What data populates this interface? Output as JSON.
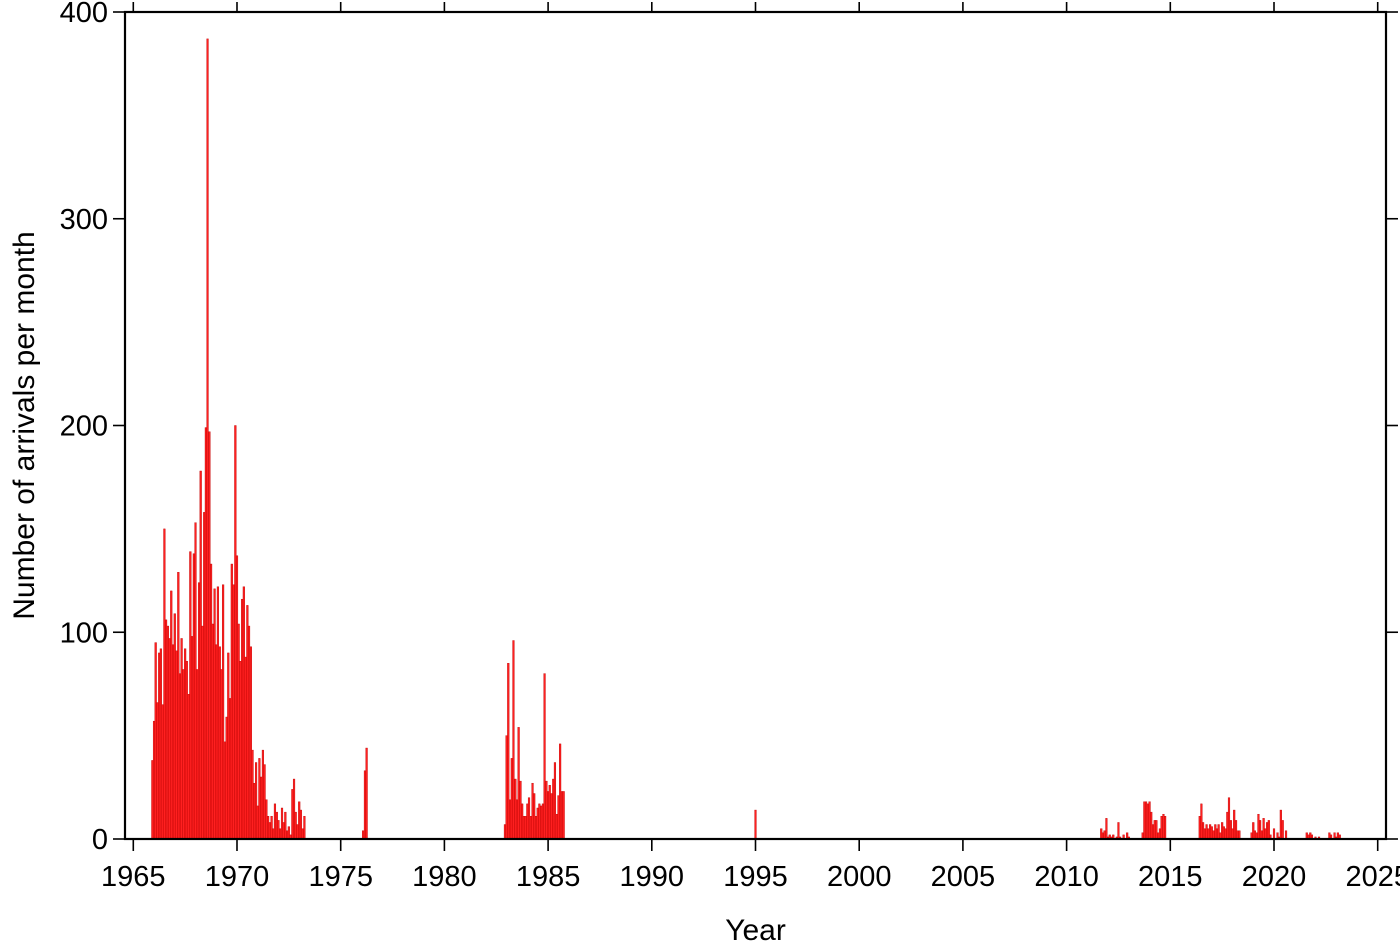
{
  "chart_data": {
    "type": "bar",
    "title": "",
    "xlabel": "Year",
    "ylabel": "Number of arrivals per month",
    "xlim": [
      1964.6,
      2025.4
    ],
    "ylim": [
      0,
      400
    ],
    "xticks": [
      1965,
      1970,
      1975,
      1980,
      1985,
      1990,
      1995,
      2000,
      2005,
      2010,
      2015,
      2020,
      2025
    ],
    "yticks": [
      0,
      100,
      200,
      300,
      400
    ],
    "grid": false,
    "legend": "none",
    "bar_color": "#ff2020",
    "bar_edge_color": "#c00000",
    "series": [
      {
        "points": [
          {
            "x": 1965.92,
            "y": 38
          },
          {
            "x": 1966.0,
            "y": 57
          },
          {
            "x": 1966.08,
            "y": 95
          },
          {
            "x": 1966.17,
            "y": 66
          },
          {
            "x": 1966.25,
            "y": 90
          },
          {
            "x": 1966.33,
            "y": 92
          },
          {
            "x": 1966.42,
            "y": 65
          },
          {
            "x": 1966.5,
            "y": 150
          },
          {
            "x": 1966.58,
            "y": 106
          },
          {
            "x": 1966.67,
            "y": 103
          },
          {
            "x": 1966.75,
            "y": 97
          },
          {
            "x": 1966.83,
            "y": 120
          },
          {
            "x": 1966.92,
            "y": 94
          },
          {
            "x": 1967.0,
            "y": 109
          },
          {
            "x": 1967.08,
            "y": 91
          },
          {
            "x": 1967.17,
            "y": 129
          },
          {
            "x": 1967.25,
            "y": 80
          },
          {
            "x": 1967.33,
            "y": 97
          },
          {
            "x": 1967.42,
            "y": 82
          },
          {
            "x": 1967.5,
            "y": 92
          },
          {
            "x": 1967.58,
            "y": 86
          },
          {
            "x": 1967.67,
            "y": 70
          },
          {
            "x": 1967.75,
            "y": 139
          },
          {
            "x": 1967.83,
            "y": 98
          },
          {
            "x": 1967.92,
            "y": 138
          },
          {
            "x": 1968.0,
            "y": 153
          },
          {
            "x": 1968.08,
            "y": 82
          },
          {
            "x": 1968.17,
            "y": 124
          },
          {
            "x": 1968.25,
            "y": 178
          },
          {
            "x": 1968.33,
            "y": 103
          },
          {
            "x": 1968.42,
            "y": 158
          },
          {
            "x": 1968.5,
            "y": 199
          },
          {
            "x": 1968.58,
            "y": 387
          },
          {
            "x": 1968.67,
            "y": 197
          },
          {
            "x": 1968.75,
            "y": 133
          },
          {
            "x": 1968.83,
            "y": 104
          },
          {
            "x": 1968.92,
            "y": 121
          },
          {
            "x": 1969.0,
            "y": 94
          },
          {
            "x": 1969.08,
            "y": 122
          },
          {
            "x": 1969.17,
            "y": 93
          },
          {
            "x": 1969.25,
            "y": 82
          },
          {
            "x": 1969.33,
            "y": 123
          },
          {
            "x": 1969.42,
            "y": 47
          },
          {
            "x": 1969.5,
            "y": 59
          },
          {
            "x": 1969.58,
            "y": 90
          },
          {
            "x": 1969.67,
            "y": 68
          },
          {
            "x": 1969.75,
            "y": 133
          },
          {
            "x": 1969.83,
            "y": 123
          },
          {
            "x": 1969.92,
            "y": 200
          },
          {
            "x": 1970.0,
            "y": 137
          },
          {
            "x": 1970.08,
            "y": 104
          },
          {
            "x": 1970.17,
            "y": 86
          },
          {
            "x": 1970.25,
            "y": 116
          },
          {
            "x": 1970.33,
            "y": 122
          },
          {
            "x": 1970.42,
            "y": 88
          },
          {
            "x": 1970.5,
            "y": 113
          },
          {
            "x": 1970.58,
            "y": 103
          },
          {
            "x": 1970.67,
            "y": 93
          },
          {
            "x": 1970.75,
            "y": 43
          },
          {
            "x": 1970.83,
            "y": 27
          },
          {
            "x": 1970.92,
            "y": 37
          },
          {
            "x": 1971.0,
            "y": 16
          },
          {
            "x": 1971.08,
            "y": 39
          },
          {
            "x": 1971.17,
            "y": 30
          },
          {
            "x": 1971.25,
            "y": 43
          },
          {
            "x": 1971.33,
            "y": 36
          },
          {
            "x": 1971.42,
            "y": 19
          },
          {
            "x": 1971.5,
            "y": 11
          },
          {
            "x": 1971.58,
            "y": 8
          },
          {
            "x": 1971.67,
            "y": 11
          },
          {
            "x": 1971.75,
            "y": 5
          },
          {
            "x": 1971.83,
            "y": 17
          },
          {
            "x": 1971.92,
            "y": 13
          },
          {
            "x": 1972.0,
            "y": 9
          },
          {
            "x": 1972.08,
            "y": 5
          },
          {
            "x": 1972.17,
            "y": 15
          },
          {
            "x": 1972.25,
            "y": 8
          },
          {
            "x": 1972.33,
            "y": 13
          },
          {
            "x": 1972.42,
            "y": 4
          },
          {
            "x": 1972.5,
            "y": 6
          },
          {
            "x": 1972.58,
            "y": 2
          },
          {
            "x": 1972.67,
            "y": 24
          },
          {
            "x": 1972.75,
            "y": 29
          },
          {
            "x": 1972.83,
            "y": 13
          },
          {
            "x": 1972.92,
            "y": 7
          },
          {
            "x": 1973.0,
            "y": 18
          },
          {
            "x": 1973.08,
            "y": 14
          },
          {
            "x": 1973.17,
            "y": 5
          },
          {
            "x": 1973.25,
            "y": 11
          },
          {
            "x": 1976.08,
            "y": 4
          },
          {
            "x": 1976.17,
            "y": 33
          },
          {
            "x": 1976.25,
            "y": 44
          },
          {
            "x": 1982.92,
            "y": 7
          },
          {
            "x": 1983.0,
            "y": 50
          },
          {
            "x": 1983.08,
            "y": 85
          },
          {
            "x": 1983.17,
            "y": 19
          },
          {
            "x": 1983.25,
            "y": 39
          },
          {
            "x": 1983.33,
            "y": 96
          },
          {
            "x": 1983.42,
            "y": 29
          },
          {
            "x": 1983.5,
            "y": 19
          },
          {
            "x": 1983.58,
            "y": 54
          },
          {
            "x": 1983.67,
            "y": 28
          },
          {
            "x": 1983.75,
            "y": 17
          },
          {
            "x": 1983.83,
            "y": 11
          },
          {
            "x": 1983.92,
            "y": 11
          },
          {
            "x": 1984.0,
            "y": 17
          },
          {
            "x": 1984.08,
            "y": 20
          },
          {
            "x": 1984.17,
            "y": 11
          },
          {
            "x": 1984.25,
            "y": 27
          },
          {
            "x": 1984.33,
            "y": 22
          },
          {
            "x": 1984.42,
            "y": 11
          },
          {
            "x": 1984.5,
            "y": 15
          },
          {
            "x": 1984.58,
            "y": 17
          },
          {
            "x": 1984.67,
            "y": 16
          },
          {
            "x": 1984.75,
            "y": 17
          },
          {
            "x": 1984.83,
            "y": 80
          },
          {
            "x": 1984.92,
            "y": 28
          },
          {
            "x": 1985.0,
            "y": 23
          },
          {
            "x": 1985.08,
            "y": 26
          },
          {
            "x": 1985.17,
            "y": 22
          },
          {
            "x": 1985.25,
            "y": 29
          },
          {
            "x": 1985.33,
            "y": 37
          },
          {
            "x": 1985.42,
            "y": 12
          },
          {
            "x": 1985.5,
            "y": 21
          },
          {
            "x": 1985.58,
            "y": 46
          },
          {
            "x": 1985.67,
            "y": 23
          },
          {
            "x": 1985.75,
            "y": 23
          },
          {
            "x": 1995.0,
            "y": 14
          },
          {
            "x": 2011.67,
            "y": 5
          },
          {
            "x": 2011.75,
            "y": 3
          },
          {
            "x": 2011.83,
            "y": 4
          },
          {
            "x": 2011.92,
            "y": 10
          },
          {
            "x": 2012.0,
            "y": 1
          },
          {
            "x": 2012.08,
            "y": 2
          },
          {
            "x": 2012.17,
            "y": 1
          },
          {
            "x": 2012.25,
            "y": 2
          },
          {
            "x": 2012.42,
            "y": 1
          },
          {
            "x": 2012.5,
            "y": 8
          },
          {
            "x": 2012.58,
            "y": 1
          },
          {
            "x": 2012.75,
            "y": 2
          },
          {
            "x": 2012.92,
            "y": 3
          },
          {
            "x": 2013.0,
            "y": 1
          },
          {
            "x": 2013.67,
            "y": 3
          },
          {
            "x": 2013.75,
            "y": 18
          },
          {
            "x": 2013.83,
            "y": 18
          },
          {
            "x": 2013.92,
            "y": 17
          },
          {
            "x": 2014.0,
            "y": 18
          },
          {
            "x": 2014.08,
            "y": 13
          },
          {
            "x": 2014.17,
            "y": 7
          },
          {
            "x": 2014.25,
            "y": 9
          },
          {
            "x": 2014.33,
            "y": 9
          },
          {
            "x": 2014.42,
            "y": 3
          },
          {
            "x": 2014.5,
            "y": 5
          },
          {
            "x": 2014.58,
            "y": 11
          },
          {
            "x": 2014.67,
            "y": 12
          },
          {
            "x": 2014.75,
            "y": 11
          },
          {
            "x": 2016.42,
            "y": 11
          },
          {
            "x": 2016.5,
            "y": 17
          },
          {
            "x": 2016.58,
            "y": 8
          },
          {
            "x": 2016.67,
            "y": 5
          },
          {
            "x": 2016.75,
            "y": 7
          },
          {
            "x": 2016.83,
            "y": 5
          },
          {
            "x": 2016.92,
            "y": 7
          },
          {
            "x": 2017.0,
            "y": 6
          },
          {
            "x": 2017.08,
            "y": 4
          },
          {
            "x": 2017.17,
            "y": 7
          },
          {
            "x": 2017.25,
            "y": 5
          },
          {
            "x": 2017.33,
            "y": 7
          },
          {
            "x": 2017.42,
            "y": 3
          },
          {
            "x": 2017.5,
            "y": 8
          },
          {
            "x": 2017.58,
            "y": 6
          },
          {
            "x": 2017.67,
            "y": 5
          },
          {
            "x": 2017.75,
            "y": 13
          },
          {
            "x": 2017.83,
            "y": 20
          },
          {
            "x": 2017.92,
            "y": 9
          },
          {
            "x": 2018.0,
            "y": 5
          },
          {
            "x": 2018.08,
            "y": 14
          },
          {
            "x": 2018.17,
            "y": 9
          },
          {
            "x": 2018.25,
            "y": 4
          },
          {
            "x": 2018.33,
            "y": 4
          },
          {
            "x": 2018.92,
            "y": 3
          },
          {
            "x": 2019.0,
            "y": 8
          },
          {
            "x": 2019.08,
            "y": 4
          },
          {
            "x": 2019.17,
            "y": 3
          },
          {
            "x": 2019.25,
            "y": 12
          },
          {
            "x": 2019.33,
            "y": 9
          },
          {
            "x": 2019.42,
            "y": 4
          },
          {
            "x": 2019.5,
            "y": 10
          },
          {
            "x": 2019.58,
            "y": 5
          },
          {
            "x": 2019.67,
            "y": 8
          },
          {
            "x": 2019.75,
            "y": 9
          },
          {
            "x": 2019.83,
            "y": 2
          },
          {
            "x": 2020.0,
            "y": 5
          },
          {
            "x": 2020.17,
            "y": 3
          },
          {
            "x": 2020.25,
            "y": 1
          },
          {
            "x": 2020.33,
            "y": 14
          },
          {
            "x": 2020.42,
            "y": 9
          },
          {
            "x": 2020.58,
            "y": 4
          },
          {
            "x": 2021.58,
            "y": 3
          },
          {
            "x": 2021.67,
            "y": 2
          },
          {
            "x": 2021.75,
            "y": 3
          },
          {
            "x": 2021.83,
            "y": 2
          },
          {
            "x": 2022.0,
            "y": 1
          },
          {
            "x": 2022.17,
            "y": 1
          },
          {
            "x": 2022.67,
            "y": 3
          },
          {
            "x": 2022.75,
            "y": 2
          },
          {
            "x": 2022.92,
            "y": 3
          },
          {
            "x": 2023.0,
            "y": 1
          },
          {
            "x": 2023.08,
            "y": 3
          },
          {
            "x": 2023.17,
            "y": 2
          }
        ]
      }
    ]
  }
}
